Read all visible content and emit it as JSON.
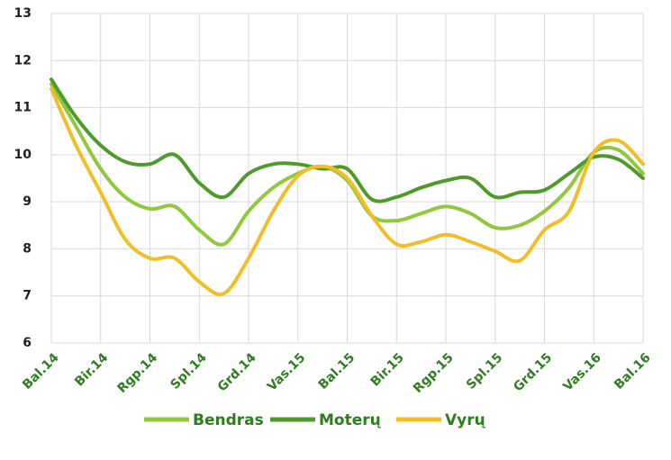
{
  "chart_data": {
    "type": "line",
    "categories": [
      "Bal.14",
      null,
      "Bir.14",
      null,
      "Rgp.14",
      null,
      "Spl.14",
      null,
      "Grd.14",
      null,
      "Vas.15",
      null,
      "Bal.15",
      null,
      "Bir.15",
      null,
      "Rgp.15",
      null,
      "Spl.15",
      null,
      "Grd.15",
      null,
      "Vas.16",
      null,
      "Bal.16"
    ],
    "series": [
      {
        "name": "Bendras",
        "color": "#92c83e",
        "values": [
          11.5,
          10.6,
          9.7,
          9.1,
          8.85,
          8.9,
          8.4,
          8.1,
          8.8,
          9.3,
          9.6,
          9.75,
          9.45,
          8.7,
          8.6,
          8.75,
          8.9,
          8.75,
          8.45,
          8.5,
          8.8,
          9.3,
          10.05,
          10.1,
          9.6
        ]
      },
      {
        "name": "Moterų",
        "color": "#4e9a2b",
        "values": [
          11.6,
          10.8,
          10.2,
          9.85,
          9.8,
          10.0,
          9.4,
          9.1,
          9.6,
          9.8,
          9.8,
          9.7,
          9.7,
          9.05,
          9.1,
          9.3,
          9.45,
          9.5,
          9.1,
          9.2,
          9.25,
          9.6,
          9.95,
          9.9,
          9.5
        ]
      },
      {
        "name": "Vyrų",
        "color": "#f2be28",
        "values": [
          11.4,
          10.2,
          9.2,
          8.2,
          7.8,
          7.8,
          7.3,
          7.05,
          7.8,
          8.8,
          9.55,
          9.75,
          9.5,
          8.7,
          8.1,
          8.15,
          8.3,
          8.15,
          7.95,
          7.75,
          8.4,
          8.8,
          10.05,
          10.3,
          9.8
        ]
      }
    ],
    "ylim": [
      6,
      13
    ],
    "yticks": [
      6,
      7,
      8,
      9,
      10,
      11,
      12,
      13
    ],
    "grid": true,
    "legend": "bottom"
  }
}
